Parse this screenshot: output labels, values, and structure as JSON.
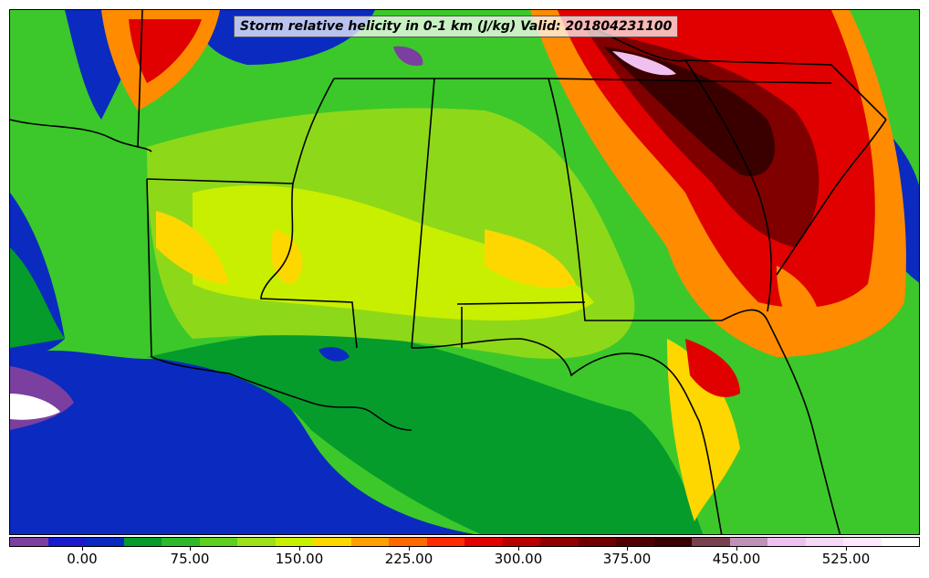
{
  "title": "Storm relative helicity in 0-1 km (J/kg) Valid: 201804231100",
  "colorbar": {
    "colors": [
      "#7b3fa0",
      "#1a1ad0",
      "#0a2ac0",
      "#059c2c",
      "#2eb82e",
      "#5fd01f",
      "#a0e01a",
      "#c8ef00",
      "#ffd700",
      "#ff9f00",
      "#ff6a00",
      "#ff2a00",
      "#e00000",
      "#b80000",
      "#900000",
      "#700000",
      "#500000",
      "#3a0000",
      "#7a4050",
      "#c090b8",
      "#f0c0f0",
      "#f8d8f8",
      "#ffe8ff",
      "#ffffff"
    ],
    "ticks": [
      "0.00",
      "75.00",
      "150.00",
      "225.00",
      "300.00",
      "375.00",
      "450.00",
      "525.00"
    ]
  },
  "palette": {
    "ocean_purple": "#7b3fa0",
    "blue": "#0a2ac0",
    "dark_green": "#059c2c",
    "green": "#3cc82a",
    "light_green": "#8ed81a",
    "yellow_green": "#c8ef00",
    "yellow": "#ffd700",
    "orange": "#ff8c00",
    "red": "#e00000",
    "dark_red": "#800000",
    "darkest": "#3a0000",
    "white": "#ffffff",
    "boundary": "#000000"
  }
}
